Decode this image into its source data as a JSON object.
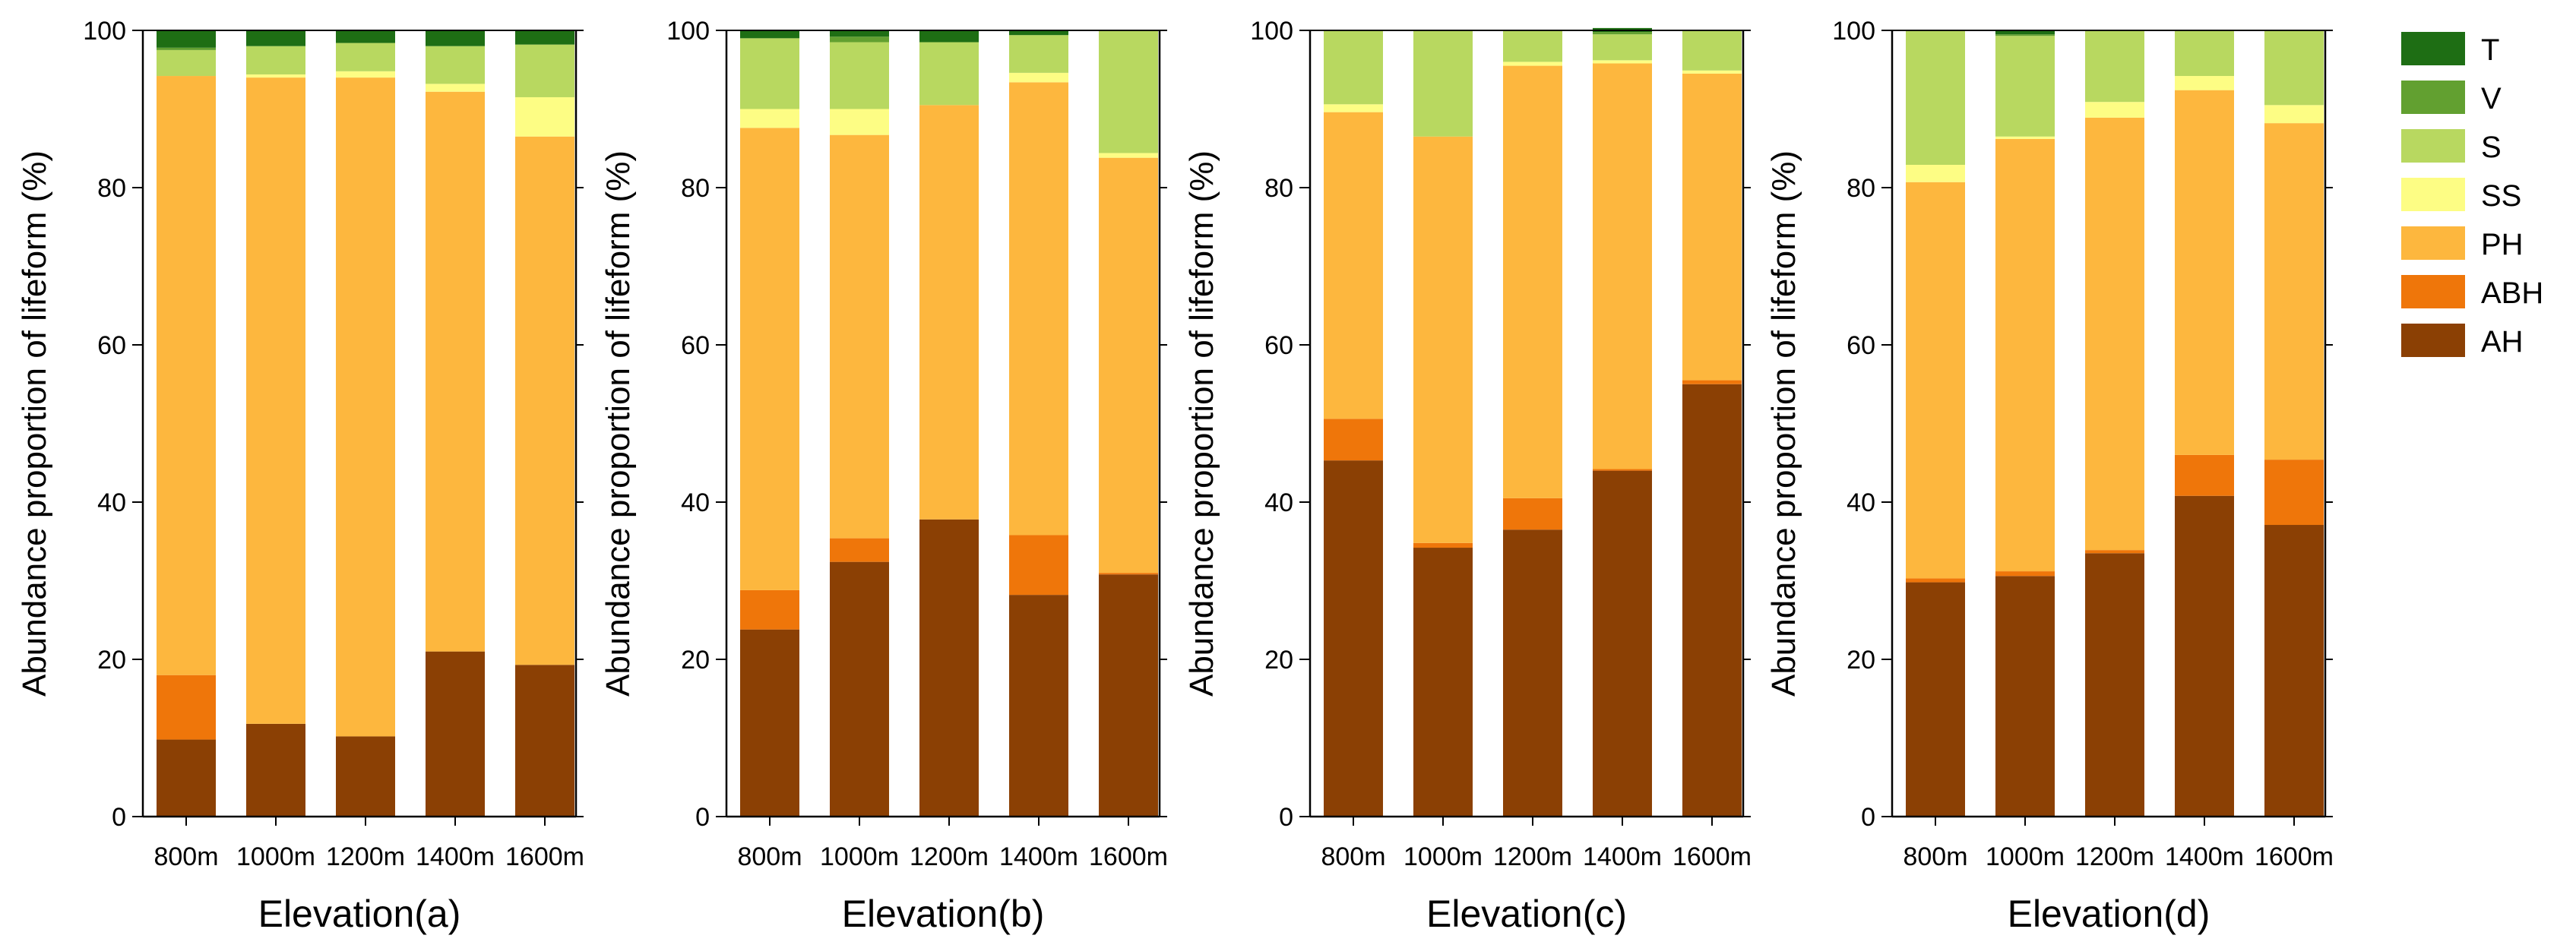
{
  "legend": [
    {
      "key": "T",
      "label": "T",
      "color": "#1e6e14"
    },
    {
      "key": "V",
      "label": "V",
      "color": "#62a030"
    },
    {
      "key": "S",
      "label": "S",
      "color": "#b8d860"
    },
    {
      "key": "SS",
      "label": "SS",
      "color": "#fdfd84"
    },
    {
      "key": "PH",
      "label": "PH",
      "color": "#fdb73e"
    },
    {
      "key": "ABH",
      "label": "ABH",
      "color": "#ef760a"
    },
    {
      "key": "AH",
      "label": "AH",
      "color": "#8b4004"
    }
  ],
  "chart_data": [
    {
      "type": "bar",
      "stacked": true,
      "title": "",
      "xlabel": "Elevation(a)",
      "ylabel": "Abundance proportion of lifeform (%)",
      "ylim": [
        0,
        100
      ],
      "yticks": [
        0,
        20,
        40,
        60,
        80,
        100
      ],
      "categories": [
        "800m",
        "1000m",
        "1200m",
        "1400m",
        "1600m"
      ],
      "series": [
        {
          "name": "AH",
          "values": [
            9.8,
            11.8,
            10.2,
            21.0,
            19.3
          ]
        },
        {
          "name": "ABH",
          "values": [
            8.2,
            0.0,
            0.0,
            0.0,
            0.0
          ]
        },
        {
          "name": "PH",
          "values": [
            76.2,
            82.2,
            83.8,
            71.2,
            67.2
          ]
        },
        {
          "name": "SS",
          "values": [
            0.0,
            0.4,
            0.8,
            1.0,
            5.0
          ]
        },
        {
          "name": "S",
          "values": [
            3.3,
            3.6,
            3.6,
            4.8,
            6.7
          ]
        },
        {
          "name": "V",
          "values": [
            0.3,
            0.0,
            0.0,
            0.0,
            0.0
          ]
        },
        {
          "name": "T",
          "values": [
            2.2,
            2.0,
            1.6,
            2.0,
            1.8
          ]
        }
      ]
    },
    {
      "type": "bar",
      "stacked": true,
      "title": "",
      "xlabel": "Elevation(b)",
      "ylabel": "Abundance proportion of lifeform (%)",
      "ylim": [
        0,
        100
      ],
      "yticks": [
        0,
        20,
        40,
        60,
        80,
        100
      ],
      "categories": [
        "800m",
        "1000m",
        "1200m",
        "1400m",
        "1600m"
      ],
      "series": [
        {
          "name": "AH",
          "values": [
            23.8,
            32.4,
            37.8,
            28.2,
            30.8
          ]
        },
        {
          "name": "ABH",
          "values": [
            5.0,
            3.0,
            0.0,
            7.6,
            0.2
          ]
        },
        {
          "name": "PH",
          "values": [
            58.8,
            51.3,
            52.7,
            57.6,
            52.8
          ]
        },
        {
          "name": "SS",
          "values": [
            2.4,
            3.3,
            0.0,
            1.2,
            0.6
          ]
        },
        {
          "name": "S",
          "values": [
            9.0,
            8.5,
            8.0,
            4.8,
            15.6
          ]
        },
        {
          "name": "V",
          "values": [
            0.0,
            0.7,
            0.0,
            0.0,
            0.0
          ]
        },
        {
          "name": "T",
          "values": [
            1.0,
            0.8,
            1.5,
            0.6,
            0.0
          ]
        }
      ]
    },
    {
      "type": "bar",
      "stacked": true,
      "title": "",
      "xlabel": "Elevation(c)",
      "ylabel": "Abundance proportion of lifeform (%)",
      "ylim": [
        0,
        100
      ],
      "yticks": [
        0,
        20,
        40,
        60,
        80,
        100
      ],
      "categories": [
        "800m",
        "1000m",
        "1200m",
        "1400m",
        "1600m"
      ],
      "series": [
        {
          "name": "AH",
          "values": [
            45.3,
            34.2,
            36.5,
            44.0,
            55.0
          ]
        },
        {
          "name": "ABH",
          "values": [
            5.3,
            0.6,
            4.0,
            0.2,
            0.5
          ]
        },
        {
          "name": "PH",
          "values": [
            39.0,
            51.7,
            55.0,
            51.6,
            39.0
          ]
        },
        {
          "name": "SS",
          "values": [
            1.0,
            0.0,
            0.5,
            0.4,
            0.4
          ]
        },
        {
          "name": "S",
          "values": [
            9.4,
            13.5,
            4.0,
            3.3,
            5.1
          ]
        },
        {
          "name": "V",
          "values": [
            0.0,
            0.0,
            0.0,
            0.3,
            0.0
          ]
        },
        {
          "name": "T",
          "values": [
            0.0,
            0.0,
            0.0,
            0.5,
            0.0
          ]
        }
      ]
    },
    {
      "type": "bar",
      "stacked": true,
      "title": "",
      "xlabel": "Elevation(d)",
      "ylabel": "Abundance proportion of lifeform (%)",
      "ylim": [
        0,
        100
      ],
      "yticks": [
        0,
        20,
        40,
        60,
        80,
        100
      ],
      "categories": [
        "800m",
        "1000m",
        "1200m",
        "1400m",
        "1600m"
      ],
      "series": [
        {
          "name": "AH",
          "values": [
            29.8,
            30.6,
            33.5,
            40.8,
            37.1
          ]
        },
        {
          "name": "ABH",
          "values": [
            0.5,
            0.6,
            0.4,
            5.2,
            8.3
          ]
        },
        {
          "name": "PH",
          "values": [
            50.4,
            55.0,
            55.0,
            46.4,
            42.8
          ]
        },
        {
          "name": "SS",
          "values": [
            2.2,
            0.3,
            2.0,
            1.8,
            2.3
          ]
        },
        {
          "name": "S",
          "values": [
            17.1,
            12.8,
            9.1,
            5.8,
            9.5
          ]
        },
        {
          "name": "V",
          "values": [
            0.0,
            0.2,
            0.0,
            0.0,
            0.0
          ]
        },
        {
          "name": "T",
          "values": [
            0.0,
            0.5,
            0.0,
            0.0,
            0.0
          ]
        }
      ]
    }
  ]
}
